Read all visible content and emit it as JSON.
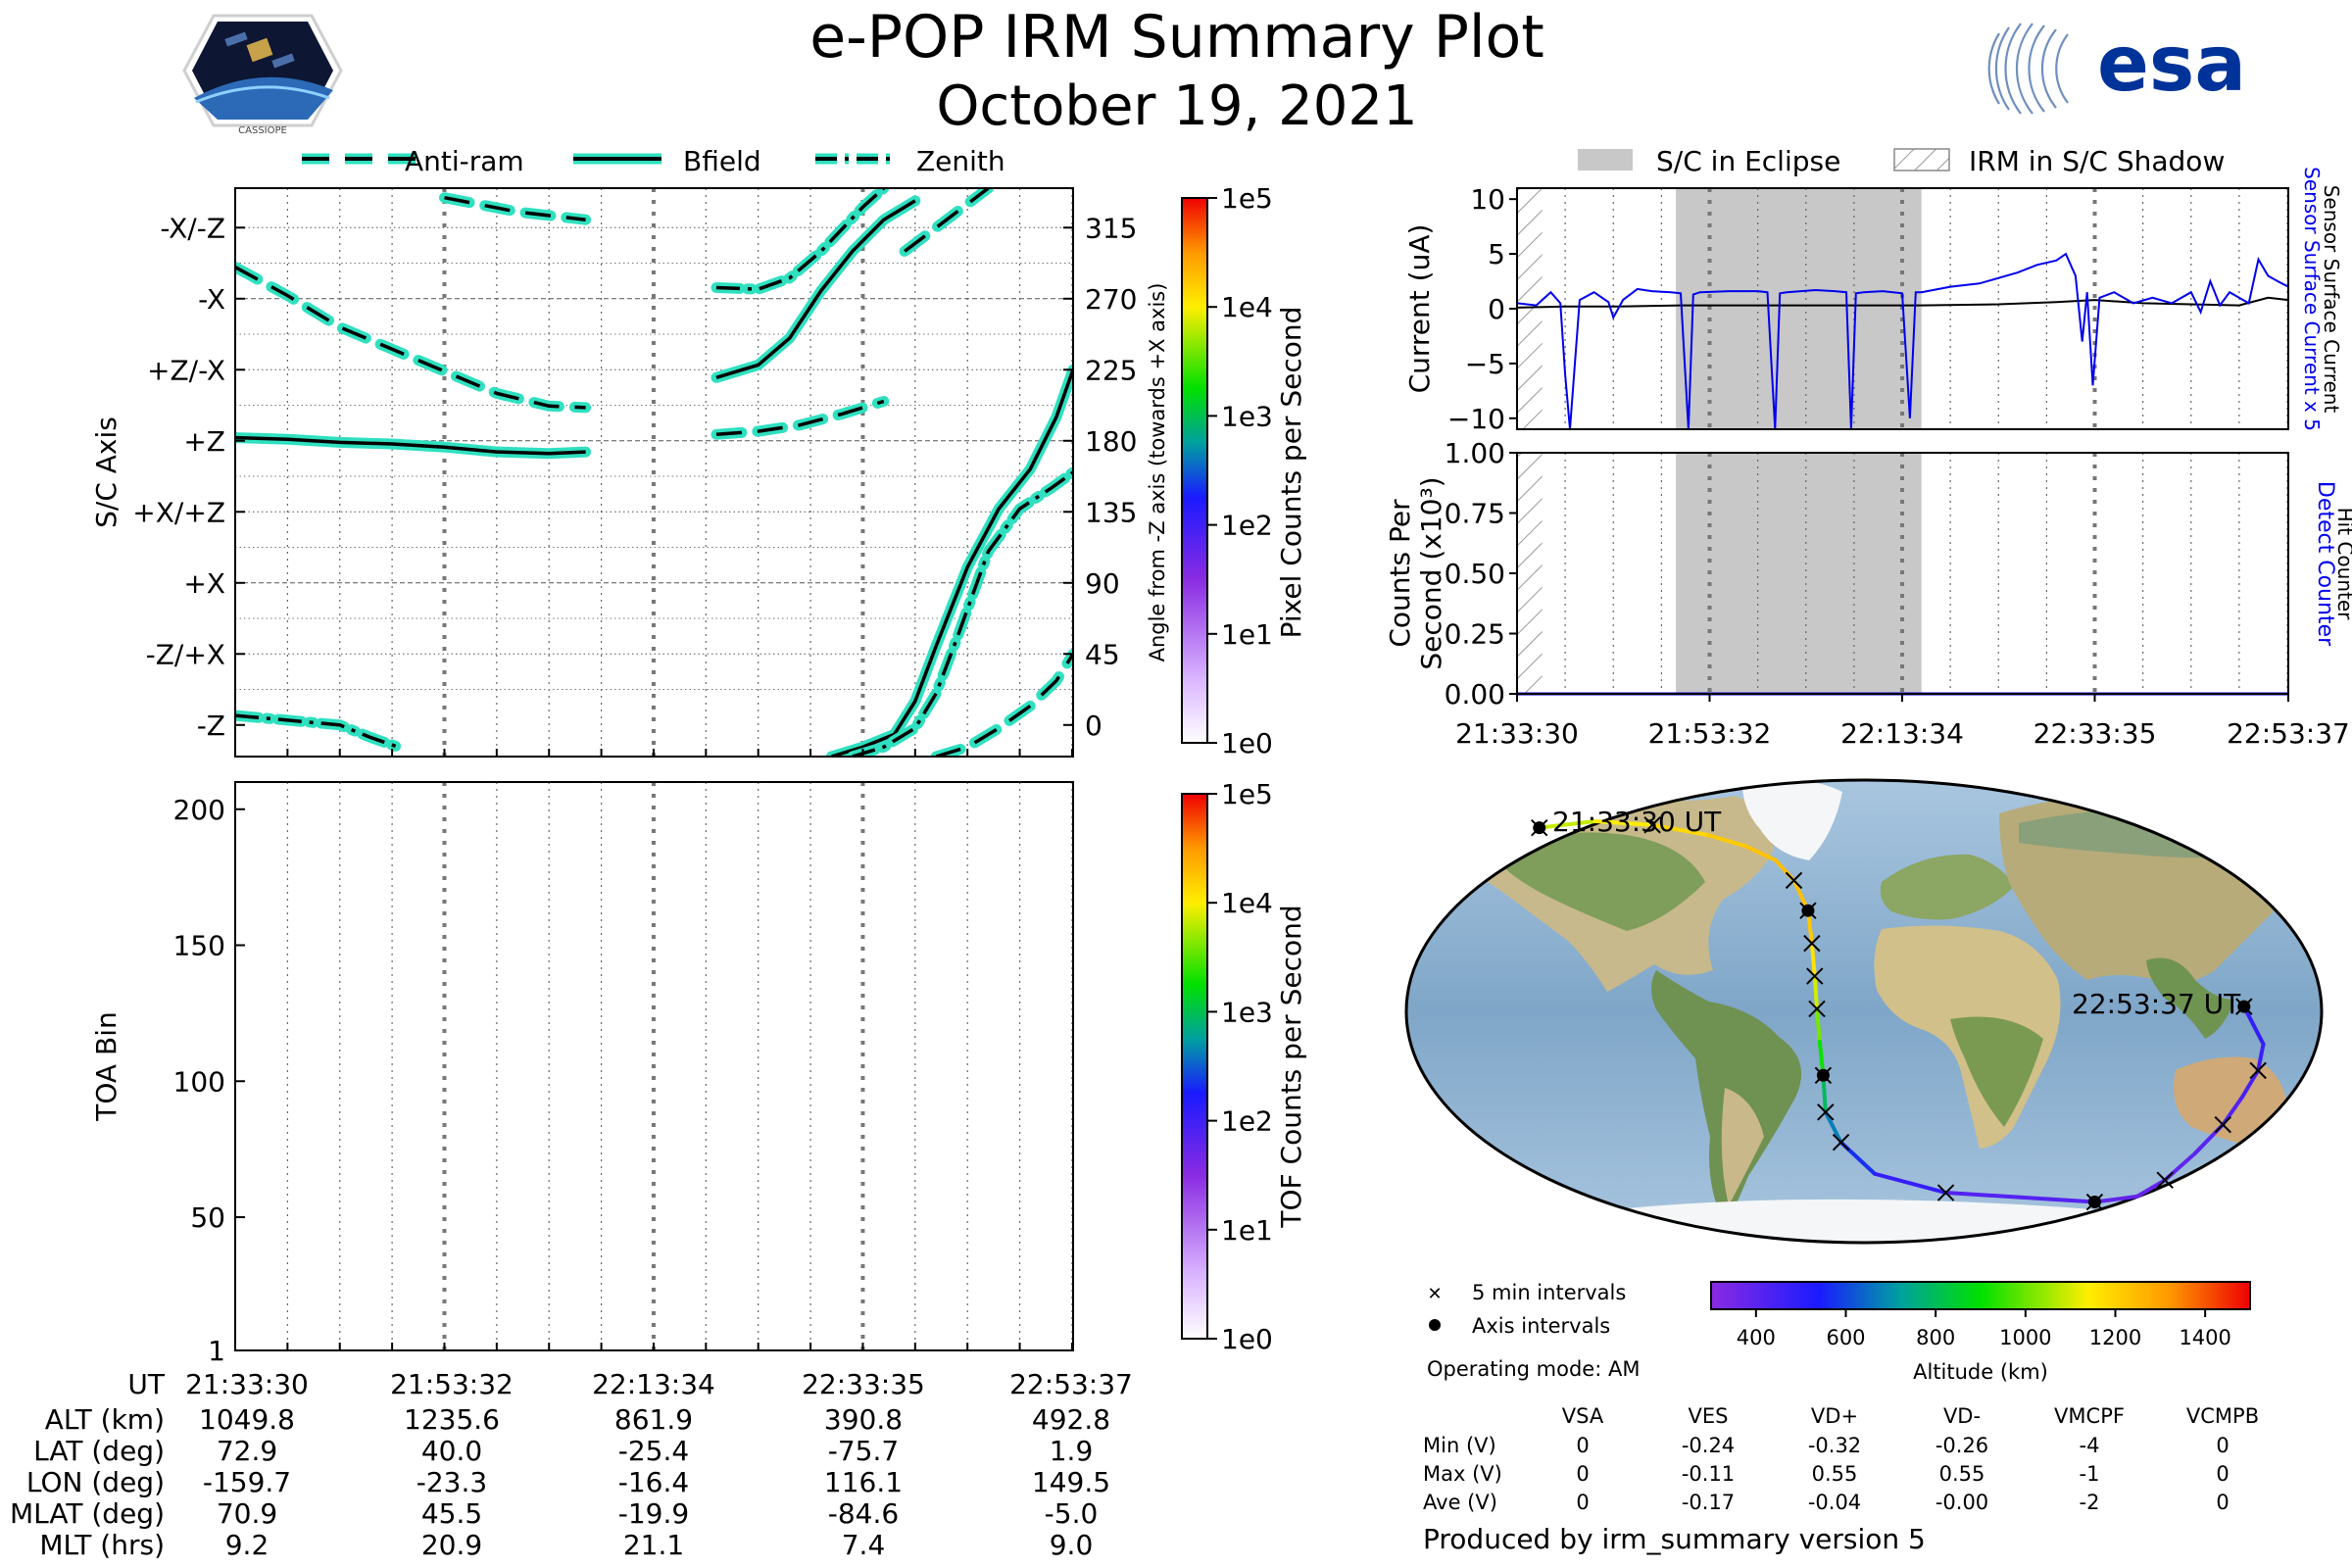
{
  "header": {
    "title": "e-POP IRM Summary Plot",
    "date": "October 19, 2021",
    "cassiope_logo_text": "CASSIOPE",
    "esa_logo_text": "esa"
  },
  "colors": {
    "line_cyan": "#2fe0c0",
    "current_blue": "#0000ee",
    "eclipse_gray": "#c8c8c8"
  },
  "chart_data": [
    {
      "id": "sc-axis-angle",
      "type": "line",
      "legend": [
        "Anti-ram",
        "Bfield",
        "Zenith"
      ],
      "legend_placement": "top",
      "left_tick_labels": [
        "-X/-Z",
        "-X",
        "+Z/-X",
        "+Z",
        "+X/+Z",
        "+X",
        "-Z/+X",
        "-Z"
      ],
      "left_ylabel": "S/C Axis",
      "right_ylabel": "Angle from -Z axis (towards +X axis)",
      "right_ticks": [
        315,
        270,
        225,
        180,
        135,
        90,
        45,
        0
      ],
      "ylim": [
        -20,
        340
      ],
      "xlim": [
        0,
        80.1
      ],
      "x_unit": "minutes after 21:33:30",
      "colorbar": {
        "label": "Pixel Counts per Second",
        "ticks": [
          "1e5",
          "1e4",
          "1e3",
          "1e2",
          "1e1",
          "1e0"
        ]
      },
      "series": [
        {
          "name": "Anti-ram",
          "style": "dashed",
          "segments": [
            [
              [
                0,
                290
              ],
              [
                5,
                272
              ],
              [
                10,
                252
              ],
              [
                15,
                238
              ],
              [
                20,
                224
              ],
              [
                25,
                210
              ],
              [
                30,
                202
              ],
              [
                33.5,
                201
              ]
            ],
            [
              [
                20,
                334
              ],
              [
                27,
                325
              ],
              [
                33.5,
                320
              ]
            ],
            [
              [
                46,
                184
              ],
              [
                50,
                186
              ],
              [
                54,
                190
              ],
              [
                58,
                197
              ],
              [
                62,
                205
              ]
            ],
            [
              [
                64,
                300
              ],
              [
                67,
                315
              ],
              [
                70,
                330
              ],
              [
                72,
                340
              ]
            ],
            [
              [
                67,
                -20
              ],
              [
                70,
                -14
              ],
              [
                73,
                -2
              ],
              [
                76,
                12
              ],
              [
                78.5,
                28
              ],
              [
                80.1,
                45
              ]
            ]
          ]
        },
        {
          "name": "Bfield",
          "style": "solid",
          "segments": [
            [
              [
                0,
                182
              ],
              [
                5,
                181
              ],
              [
                10,
                179
              ],
              [
                15,
                178
              ],
              [
                20,
                176
              ],
              [
                25,
                173
              ],
              [
                30,
                172
              ],
              [
                33.5,
                173
              ]
            ],
            [
              [
                46,
                220
              ],
              [
                50,
                228
              ],
              [
                53,
                245
              ],
              [
                56,
                275
              ],
              [
                59,
                300
              ],
              [
                62,
                320
              ],
              [
                65,
                332
              ]
            ],
            [
              [
                57,
                -20
              ],
              [
                60,
                -14
              ],
              [
                63,
                -6
              ],
              [
                65,
                15
              ],
              [
                67,
                50
              ],
              [
                70,
                100
              ],
              [
                73,
                137
              ],
              [
                76,
                162
              ],
              [
                78.5,
                195
              ],
              [
                80.1,
                225
              ]
            ]
          ]
        },
        {
          "name": "Zenith",
          "style": "dashdot",
          "segments": [
            [
              [
                0,
                6
              ],
              [
                5,
                3
              ],
              [
                10,
                0
              ],
              [
                13,
                -8
              ],
              [
                16,
                -15
              ]
            ],
            [
              [
                46,
                277
              ],
              [
                50,
                276
              ],
              [
                53,
                283
              ],
              [
                56,
                300
              ],
              [
                60,
                328
              ],
              [
                62,
                340
              ]
            ],
            [
              [
                59,
                -20
              ],
              [
                62,
                -14
              ],
              [
                65,
                -2
              ],
              [
                67,
                20
              ],
              [
                69,
                55
              ],
              [
                72,
                110
              ],
              [
                75,
                137
              ],
              [
                78,
                150
              ],
              [
                80.1,
                160
              ]
            ]
          ]
        }
      ]
    },
    {
      "id": "toa-bin",
      "type": "heatmap",
      "ylabel": "TOA Bin",
      "yticks": [
        1,
        50,
        100,
        150,
        200
      ],
      "ylim": [
        1,
        210
      ],
      "xlim": [
        0,
        80.1
      ],
      "colorbar": {
        "label": "TOF Counts per Second",
        "ticks": [
          "1e5",
          "1e4",
          "1e3",
          "1e2",
          "1e1",
          "1e0"
        ]
      }
    },
    {
      "id": "sensor-current",
      "type": "line",
      "ylabel": "Current (uA)",
      "yticks": [
        10,
        5,
        0,
        -5,
        -10
      ],
      "ylim": [
        -11,
        11
      ],
      "xlim": [
        0,
        80.1
      ],
      "legend": [
        "S/C in Eclipse",
        "IRM in S/C Shadow"
      ],
      "legend_placement": "top",
      "right_label_1": "Sensor Surface Current x 5",
      "right_label_2": "Sensor Surface Current",
      "eclipse_interval": [
        16.5,
        42.0
      ],
      "shadow_interval": [
        0,
        2.0
      ],
      "series": [
        {
          "name": "Sensor Surface Current x 5",
          "color": "#0000ee",
          "x": [
            0,
            2,
            3.5,
            4.5,
            5.0,
            5.5,
            6.5,
            8,
            9.5,
            10,
            11,
            12.5,
            14,
            16,
            17.0,
            17.8,
            18.3,
            19,
            22,
            25,
            26.0,
            26.8,
            27.3,
            28,
            31,
            33,
            34.2,
            34.7,
            35.2,
            36,
            38,
            40,
            40.8,
            41.4,
            42,
            45,
            48,
            50,
            52,
            54,
            56,
            57,
            58,
            58.7,
            59.2,
            59.8,
            60.5,
            62,
            64,
            66,
            68,
            70,
            71,
            72,
            73,
            74,
            76,
            77,
            78,
            79,
            80.1
          ],
          "values": [
            0.5,
            0.3,
            1.5,
            0.5,
            -6,
            -11,
            0.8,
            1.5,
            0.6,
            -0.8,
            0.8,
            1.8,
            1.6,
            1.5,
            1.4,
            -11,
            1.3,
            1.5,
            1.6,
            1.6,
            1.5,
            -11,
            1.4,
            1.5,
            1.7,
            1.6,
            1.5,
            -11,
            1.4,
            1.5,
            1.6,
            1.4,
            -10,
            1.5,
            1.5,
            2.0,
            2.3,
            2.8,
            3.3,
            4.0,
            4.4,
            5.0,
            3.0,
            -3.0,
            1.5,
            -7.0,
            1.0,
            1.5,
            0.5,
            1.0,
            0.5,
            1.5,
            -0.3,
            2.5,
            0.3,
            1.5,
            0.5,
            4.5,
            3.0,
            2.5,
            2.0
          ]
        },
        {
          "name": "Sensor Surface Current",
          "color": "#000000",
          "x": [
            0,
            5,
            10,
            17,
            25,
            34,
            42,
            50,
            56,
            60,
            65,
            70,
            75,
            78,
            80.1
          ],
          "values": [
            0.1,
            0.2,
            0.2,
            0.3,
            0.3,
            0.3,
            0.3,
            0.4,
            0.6,
            0.8,
            0.5,
            0.4,
            0.3,
            1.0,
            0.8
          ]
        }
      ]
    },
    {
      "id": "counts-per-second",
      "type": "line",
      "ylabel": "Counts Per Second (x10³)",
      "yticks": [
        "1.00",
        "0.75",
        "0.50",
        "0.25",
        "0.00"
      ],
      "ylim": [
        0,
        1
      ],
      "xlim": [
        0,
        80.1
      ],
      "xtick_labels": [
        "21:33:30",
        "21:53:32",
        "22:13:34",
        "22:33:35",
        "22:53:37"
      ],
      "right_label_1": "Detect Counter",
      "right_label_2": "Hit Counter",
      "series": [
        {
          "name": "Detect Counter",
          "color": "#0000ee",
          "x": [
            0,
            80.1
          ],
          "values": [
            0,
            0
          ]
        },
        {
          "name": "Hit Counter",
          "color": "#000000",
          "x": [
            0,
            80.1
          ],
          "values": [
            0,
            0
          ]
        }
      ]
    },
    {
      "id": "orbit-map",
      "type": "scatter",
      "start_label": "21:33:30 UT",
      "end_label": "22:53:37 UT",
      "ground_track": {
        "lat": [
          72.9,
          75.5,
          74.0,
          70.0,
          65.5,
          60.0,
          52.0,
          40.0,
          27.0,
          14.0,
          1.0,
          -12.0,
          -25.4,
          -40.0,
          -52.0,
          -64.5,
          -72.0,
          -75.7,
          -73.5,
          -67.0,
          -56.5,
          -45.0,
          -34.0,
          -23.5,
          -13.0,
          1.9
        ],
        "lon": [
          -159.7,
          -135.0,
          -105.0,
          -75.0,
          -55.0,
          -40.0,
          -30.5,
          -23.3,
          -21.0,
          -19.5,
          -18.5,
          -17.5,
          -16.4,
          -16.0,
          -10.0,
          5.0,
          40.0,
          116.1,
          135.0,
          142.0,
          147.0,
          152.0,
          155.0,
          158.0,
          158.0,
          149.5
        ],
        "alt": [
          1049.8,
          1120,
          1170,
          1205,
          1225,
          1238,
          1240,
          1235.6,
          1200,
          1140,
          1060,
          960,
          861.9,
          730,
          620,
          520,
          440,
          390.8,
          380,
          385,
          395,
          410,
          430,
          455,
          475,
          492.8
        ]
      },
      "five_min_marks": [
        [
          74.0,
          -105.0
        ],
        [
          52.0,
          -30.5
        ],
        [
          27.0,
          -21.0
        ],
        [
          14.0,
          -19.5
        ],
        [
          1.0,
          -18.5
        ],
        [
          -40.0,
          -16.0
        ],
        [
          -52.0,
          -10.0
        ],
        [
          -72.0,
          40.0
        ],
        [
          -67.0,
          142.0
        ],
        [
          -45.0,
          152.0
        ],
        [
          -23.5,
          158.0
        ]
      ],
      "axis_marks": [
        [
          72.9,
          -159.7
        ],
        [
          40.0,
          -23.3
        ],
        [
          -25.4,
          -16.4
        ],
        [
          -75.7,
          116.1
        ],
        [
          1.9,
          149.5
        ]
      ],
      "legend": {
        "five_min": "5 min intervals",
        "axis": "Axis intervals"
      },
      "colorbar": {
        "label": "Altitude (km)",
        "ticks": [
          400,
          600,
          800,
          1000,
          1200,
          1400
        ],
        "range": [
          300,
          1500
        ]
      }
    }
  ],
  "ephemeris": {
    "labels": [
      "UT",
      "ALT (km)",
      "LAT (deg)",
      "LON (deg)",
      "MLAT (deg)",
      "MLT (hrs)"
    ],
    "columns": [
      [
        "21:33:30",
        "1049.8",
        "72.9",
        "-159.7",
        "70.9",
        "9.2"
      ],
      [
        "21:53:32",
        "1235.6",
        "40.0",
        "-23.3",
        "45.5",
        "20.9"
      ],
      [
        "22:13:34",
        "861.9",
        "-25.4",
        "-16.4",
        "-19.9",
        "21.1"
      ],
      [
        "22:33:35",
        "390.8",
        "-75.7",
        "116.1",
        "-84.6",
        "7.4"
      ],
      [
        "22:53:37",
        "492.8",
        "1.9",
        "149.5",
        "-5.0",
        "9.0"
      ]
    ]
  },
  "voltages": {
    "operating_mode": "Operating mode: AM",
    "headers": [
      "VSA",
      "VES",
      "VD+",
      "VD-",
      "VMCPF",
      "VCMPB"
    ],
    "rows": [
      {
        "label": "Min (V)",
        "values": [
          "0",
          "-0.24",
          "-0.32",
          "-0.26",
          "-4",
          "0"
        ]
      },
      {
        "label": "Max (V)",
        "values": [
          "0",
          "-0.11",
          "0.55",
          "0.55",
          "-1",
          "0"
        ]
      },
      {
        "label": "Ave (V)",
        "values": [
          "0",
          "-0.17",
          "-0.04",
          "-0.00",
          "-2",
          "0"
        ]
      }
    ]
  },
  "footer": {
    "produced_by": "Produced by irm_summary version 5"
  }
}
